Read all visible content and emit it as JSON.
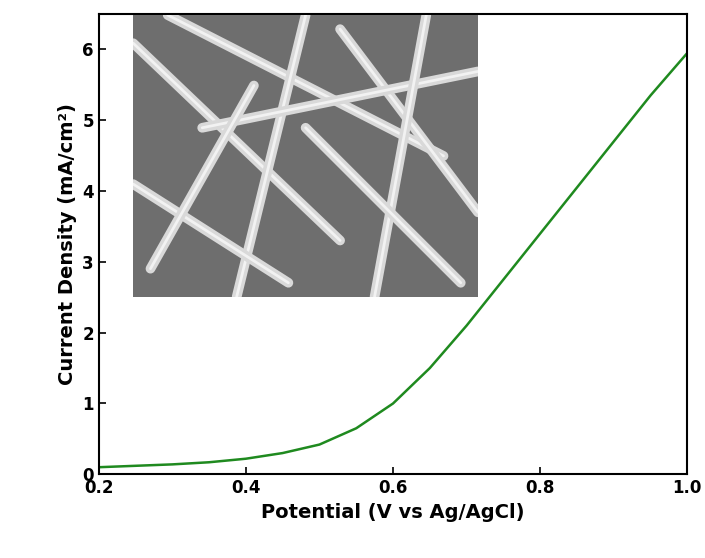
{
  "chart_data": {
    "type": "line",
    "x_label": "Potential (V vs Ag/AgCl)",
    "y_label": "Current Density (mA/cm²)",
    "x": [
      0.2,
      0.25,
      0.3,
      0.35,
      0.4,
      0.45,
      0.5,
      0.55,
      0.6,
      0.65,
      0.7,
      0.75,
      0.8,
      0.85,
      0.9,
      0.95,
      1.0
    ],
    "values": [
      0.1,
      0.12,
      0.14,
      0.17,
      0.22,
      0.3,
      0.42,
      0.65,
      1.0,
      1.5,
      2.1,
      2.75,
      3.4,
      4.05,
      4.7,
      5.35,
      5.95
    ],
    "color": "#1f8a1f",
    "xlim": [
      0.2,
      1.0
    ],
    "ylim": [
      0,
      6.5
    ],
    "xticks": [
      0.2,
      0.4,
      0.6,
      0.8,
      1.0
    ],
    "yticks": [
      0,
      1,
      2,
      3,
      4,
      5,
      6
    ],
    "grid": false
  }
}
